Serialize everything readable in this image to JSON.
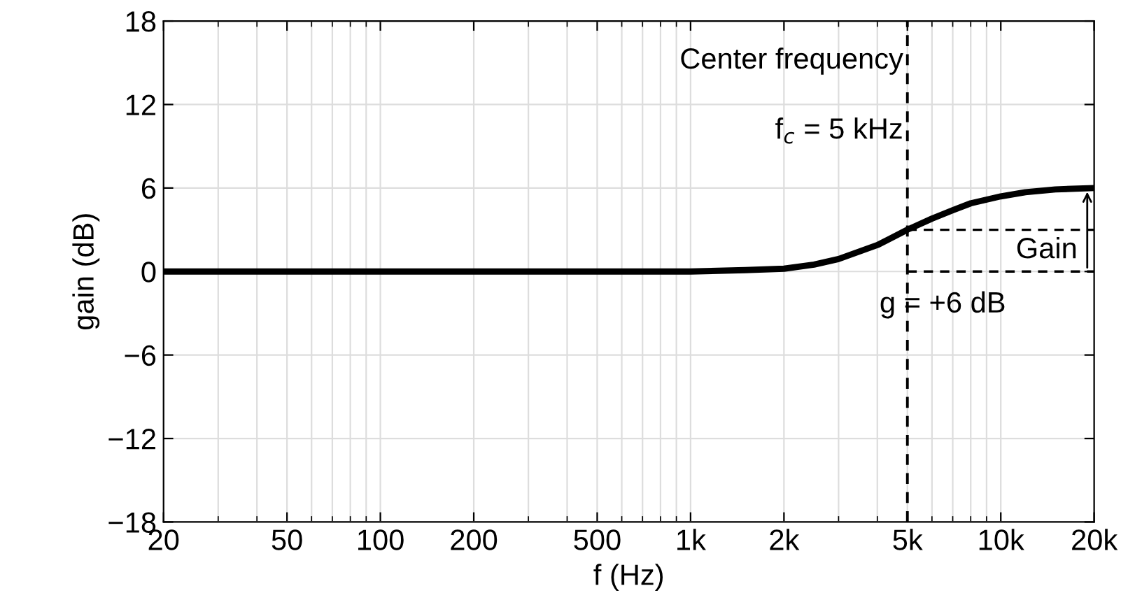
{
  "chart_data": {
    "type": "line",
    "xlabel": "f (Hz)",
    "ylabel": "gain (dB)",
    "log": "x",
    "x": [
      20,
      500,
      1000,
      1500,
      2000,
      2500,
      3000,
      4000,
      5000,
      6000,
      7000,
      8000,
      10000,
      12000,
      15000,
      20000
    ],
    "series": [
      {
        "color": "#000000",
        "values": [
          0,
          0,
          0,
          0.1,
          0.2,
          0.5,
          0.9,
          1.9,
          3.0,
          3.8,
          4.4,
          4.9,
          5.4,
          5.7,
          5.9,
          6.0
        ]
      }
    ],
    "xlim": [
      20,
      20000
    ],
    "xticks": [
      20,
      50,
      100,
      200,
      500,
      {
        "value": 1000,
        "label": "1k"
      },
      {
        "value": 2000,
        "label": "2k"
      },
      {
        "value": 5000,
        "label": "5k"
      },
      {
        "value": 10000,
        "label": "10k"
      },
      {
        "value": 20000,
        "label": "20k"
      }
    ],
    "ylim": [
      -18,
      18
    ],
    "yticks": [
      {
        "value": -18,
        "label": "−18"
      },
      {
        "value": -12,
        "label": "−12"
      },
      {
        "value": -6,
        "label": "−6"
      },
      0,
      6,
      12,
      18
    ],
    "grid": true,
    "marker": "none",
    "line_style": "solid",
    "ref_lines": [
      {
        "axis": "x",
        "value": 5000,
        "color": "#000000",
        "line_style": "dashed"
      },
      {
        "axis": "y",
        "value": 0,
        "color": "#000000",
        "line_style": "dashed"
      },
      {
        "axis": "y",
        "value": 3,
        "color": "#000000",
        "line_style": "dashed"
      }
    ],
    "annotations": [
      "Center frequency",
      "f$_{c}$ = 5 kHz",
      {
        "text": "Gain",
        "x": 19000,
        "y": 6
      },
      "g = +6 dB"
    ]
  }
}
